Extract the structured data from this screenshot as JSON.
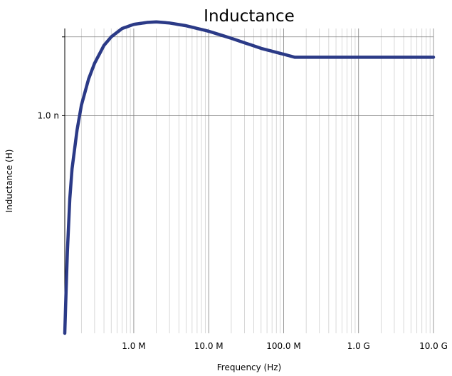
{
  "chart_data": {
    "type": "line",
    "title": "Inductance",
    "xlabel": "Frequency (Hz)",
    "ylabel": "Inductance (H)",
    "x_scale": "log",
    "y_scale": "log",
    "xlim": [
      120000,
      10000000000
    ],
    "ylim": [
      5.4e-10,
      1.28e-09
    ],
    "x_ticks": [
      {
        "value": 1000000,
        "label": "1.0 M"
      },
      {
        "value": 10000000,
        "label": "10.0 M"
      },
      {
        "value": 100000000,
        "label": "100.0 M"
      },
      {
        "value": 1000000000,
        "label": "1.0 G"
      },
      {
        "value": 10000000000,
        "label": "10.0 G"
      }
    ],
    "y_ticks": [
      {
        "value": 1e-09,
        "label": "1.0 n"
      }
    ],
    "y_gridlines": [
      1e-09,
      1.25e-09
    ],
    "grid": true,
    "line_color": "#2b3a87",
    "series": [
      {
        "x": [
          120000,
          125000,
          130000,
          140000,
          150000,
          175000,
          200000,
          250000,
          300000,
          400000,
          500000,
          700000,
          1000000,
          1500000,
          2000000,
          3000000,
          5000000,
          10000000,
          20000000,
          50000000,
          100000000,
          140000000,
          1000000000,
          10000000000
        ],
        "y": [
          5.4e-10,
          6.1e-10,
          6.8e-10,
          7.9e-10,
          8.6e-10,
          9.6e-10,
          1.03e-09,
          1.11e-09,
          1.16e-09,
          1.22e-09,
          1.25e-09,
          1.28e-09,
          1.295e-09,
          1.302e-09,
          1.304e-09,
          1.3e-09,
          1.29e-09,
          1.27e-09,
          1.245e-09,
          1.21e-09,
          1.19e-09,
          1.18e-09,
          1.18e-09,
          1.18e-09
        ]
      }
    ]
  }
}
